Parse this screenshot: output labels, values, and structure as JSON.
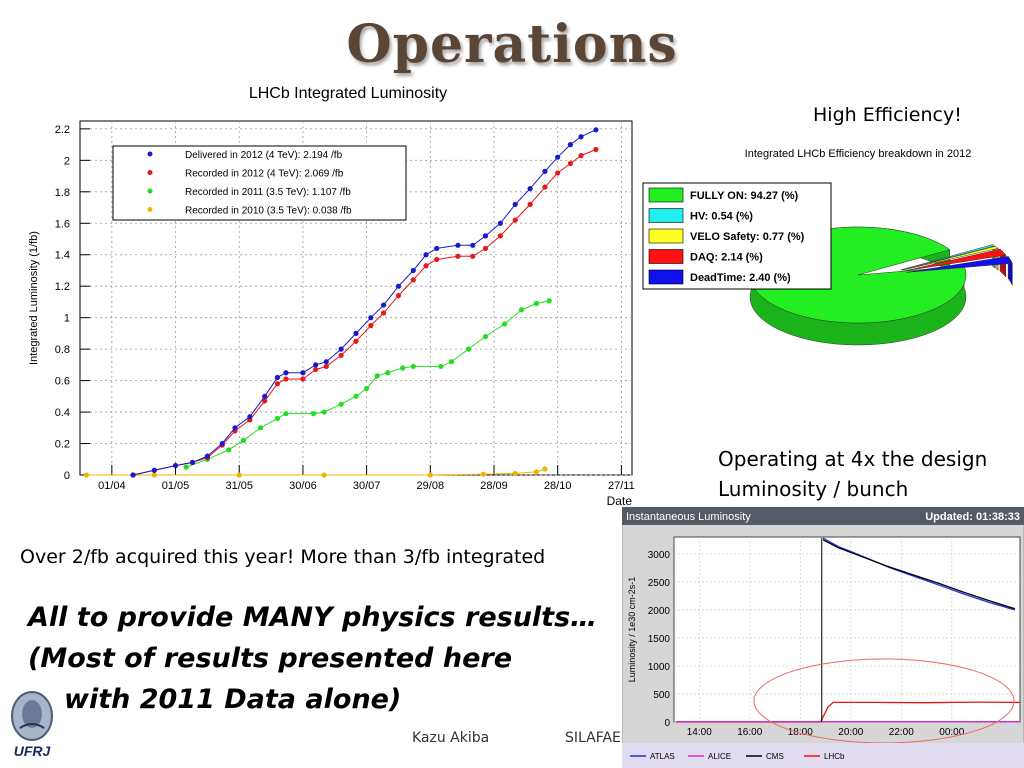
{
  "slide": {
    "title": "Operations",
    "high_efficiency": "High Efficiency!",
    "operating_line1": "Operating at 4x the design",
    "operating_line2": "Luminosity / bunch",
    "acquired": "Over 2/fb acquired this year! More than 3/fb integrated",
    "physics_line1": "All to provide MANY physics results…",
    "physics_line2": "(Most of results presented here",
    "physics_line3": "with 2011 Data alone)",
    "footer_author": "Kazu Akiba",
    "footer_conf": "SILAFAE",
    "logo_text": "UFRJ"
  },
  "colors": {
    "title": "#5b4636",
    "delivered": "#1a1acc",
    "recorded2012": "#e61919",
    "recorded2011": "#22dd22",
    "recorded2010": "#f0b400"
  },
  "chart_data": [
    {
      "type": "scatter",
      "title": "LHCb Integrated Luminosity",
      "xlabel": "Date",
      "ylabel": "Integrated Luminosity (1/fb)",
      "x_ticks": [
        "01/04",
        "01/05",
        "31/05",
        "30/06",
        "30/07",
        "29/08",
        "28/09",
        "28/10",
        "27/11"
      ],
      "y_ticks": [
        "0",
        "0.2",
        "0.4",
        "0.6",
        "0.8",
        "1",
        "1.2",
        "1.4",
        "1.6",
        "1.8",
        "2",
        "2.2"
      ],
      "ylim": [
        0,
        2.25
      ],
      "xlim_days": [
        -15,
        245
      ],
      "legend_position": "top-left",
      "grid": true,
      "series": [
        {
          "name": "Delivered in 2012 (4 TeV): 2.194 /fb",
          "color": "#1a1acc",
          "points": [
            [
              10,
              0
            ],
            [
              20,
              0.03
            ],
            [
              30,
              0.06
            ],
            [
              38,
              0.08
            ],
            [
              45,
              0.12
            ],
            [
              52,
              0.2
            ],
            [
              58,
              0.3
            ],
            [
              65,
              0.37
            ],
            [
              72,
              0.5
            ],
            [
              78,
              0.62
            ],
            [
              82,
              0.65
            ],
            [
              90,
              0.65
            ],
            [
              96,
              0.7
            ],
            [
              101,
              0.72
            ],
            [
              108,
              0.8
            ],
            [
              115,
              0.9
            ],
            [
              122,
              1.0
            ],
            [
              128,
              1.08
            ],
            [
              135,
              1.2
            ],
            [
              142,
              1.3
            ],
            [
              148,
              1.4
            ],
            [
              153,
              1.44
            ],
            [
              163,
              1.46
            ],
            [
              170,
              1.46
            ],
            [
              176,
              1.52
            ],
            [
              183,
              1.6
            ],
            [
              190,
              1.72
            ],
            [
              197,
              1.82
            ],
            [
              204,
              1.93
            ],
            [
              210,
              2.02
            ],
            [
              216,
              2.1
            ],
            [
              221,
              2.15
            ],
            [
              228,
              2.194
            ]
          ]
        },
        {
          "name": "Recorded in 2012 (4 TeV): 2.069 /fb",
          "color": "#e61919",
          "points": [
            [
              10,
              0
            ],
            [
              20,
              0.03
            ],
            [
              30,
              0.06
            ],
            [
              38,
              0.08
            ],
            [
              45,
              0.11
            ],
            [
              52,
              0.19
            ],
            [
              58,
              0.28
            ],
            [
              65,
              0.35
            ],
            [
              72,
              0.47
            ],
            [
              78,
              0.58
            ],
            [
              82,
              0.61
            ],
            [
              90,
              0.61
            ],
            [
              96,
              0.67
            ],
            [
              101,
              0.69
            ],
            [
              108,
              0.76
            ],
            [
              115,
              0.85
            ],
            [
              122,
              0.95
            ],
            [
              128,
              1.03
            ],
            [
              135,
              1.14
            ],
            [
              142,
              1.24
            ],
            [
              148,
              1.33
            ],
            [
              153,
              1.37
            ],
            [
              163,
              1.39
            ],
            [
              170,
              1.39
            ],
            [
              176,
              1.44
            ],
            [
              183,
              1.52
            ],
            [
              190,
              1.62
            ],
            [
              197,
              1.72
            ],
            [
              204,
              1.83
            ],
            [
              210,
              1.92
            ],
            [
              216,
              1.98
            ],
            [
              221,
              2.03
            ],
            [
              228,
              2.069
            ]
          ]
        },
        {
          "name": "Recorded in 2011 (3.5 TeV): 1.107 /fb",
          "color": "#22dd22",
          "points": [
            [
              35,
              0.05
            ],
            [
              45,
              0.1
            ],
            [
              55,
              0.16
            ],
            [
              62,
              0.22
            ],
            [
              70,
              0.3
            ],
            [
              78,
              0.36
            ],
            [
              82,
              0.39
            ],
            [
              95,
              0.39
            ],
            [
              100,
              0.4
            ],
            [
              108,
              0.45
            ],
            [
              115,
              0.5
            ],
            [
              120,
              0.55
            ],
            [
              125,
              0.63
            ],
            [
              130,
              0.65
            ],
            [
              137,
              0.68
            ],
            [
              142,
              0.69
            ],
            [
              155,
              0.69
            ],
            [
              160,
              0.72
            ],
            [
              168,
              0.8
            ],
            [
              176,
              0.88
            ],
            [
              185,
              0.96
            ],
            [
              193,
              1.05
            ],
            [
              200,
              1.09
            ],
            [
              206,
              1.107
            ]
          ]
        },
        {
          "name": "Recorded in 2010 (3.5 TeV): 0.038 /fb",
          "color": "#f0b400",
          "points": [
            [
              -12,
              0
            ],
            [
              20,
              0
            ],
            [
              60,
              0
            ],
            [
              100,
              0
            ],
            [
              150,
              0
            ],
            [
              175,
              0.005
            ],
            [
              190,
              0.01
            ],
            [
              200,
              0.02
            ],
            [
              204,
              0.038
            ]
          ]
        }
      ]
    },
    {
      "type": "pie",
      "title": "Integrated LHCb Efficiency breakdown in 2012",
      "labels": [
        "FULLY ON: 94.27 (%)",
        "HV: 0.54 (%)",
        "VELO Safety: 0.77 (%)",
        "DAQ: 2.14 (%)",
        "DeadTime: 2.40 (%)"
      ],
      "values": [
        94.27,
        0.54,
        0.77,
        2.14,
        2.4
      ],
      "colors": [
        "#22ee22",
        "#22eeee",
        "#ffff22",
        "#ff1111",
        "#1111ee"
      ]
    },
    {
      "type": "line",
      "title": "Instantaneous Luminosity",
      "updated": "Updated: 01:38:33",
      "ylabel": "Luminosity / 1e30 cm-2s-1",
      "x_ticks": [
        "14:00",
        "16:00",
        "18:00",
        "20:00",
        "22:00",
        "00:00"
      ],
      "y_ticks": [
        "0",
        "500",
        "1000",
        "1500",
        "2000",
        "2500",
        "3000"
      ],
      "ylim": [
        0,
        3300
      ],
      "xlim_hours": [
        13,
        26.7
      ],
      "legend": [
        "ATLAS",
        "ALICE",
        "CMS",
        "LHCb"
      ],
      "series": [
        {
          "name": "ATLAS",
          "color": "#2233dd",
          "points": [
            [
              18.9,
              3280
            ],
            [
              19.5,
              3130
            ],
            [
              20.5,
              2950
            ],
            [
              21.5,
              2760
            ],
            [
              22.5,
              2600
            ],
            [
              23.5,
              2440
            ],
            [
              24.5,
              2280
            ],
            [
              25.5,
              2130
            ],
            [
              26.5,
              2000
            ]
          ]
        },
        {
          "name": "CMS",
          "color": "#000000",
          "points": [
            [
              18.9,
              3250
            ],
            [
              19.5,
              3110
            ],
            [
              20.5,
              2940
            ],
            [
              21.5,
              2770
            ],
            [
              22.5,
              2620
            ],
            [
              23.5,
              2470
            ],
            [
              24.5,
              2310
            ],
            [
              25.5,
              2160
            ],
            [
              26.5,
              2020
            ]
          ]
        },
        {
          "name": "LHCb",
          "color": "#ee1111",
          "points": [
            [
              13.1,
              0
            ],
            [
              18.8,
              0
            ],
            [
              19.1,
              270
            ],
            [
              19.3,
              350
            ],
            [
              21,
              350
            ],
            [
              23,
              345
            ],
            [
              25,
              355
            ],
            [
              26.7,
              350
            ]
          ]
        },
        {
          "name": "ALICE",
          "color": "#cc33cc",
          "points": [
            [
              13.1,
              5
            ],
            [
              26.7,
              5
            ]
          ]
        }
      ]
    }
  ]
}
